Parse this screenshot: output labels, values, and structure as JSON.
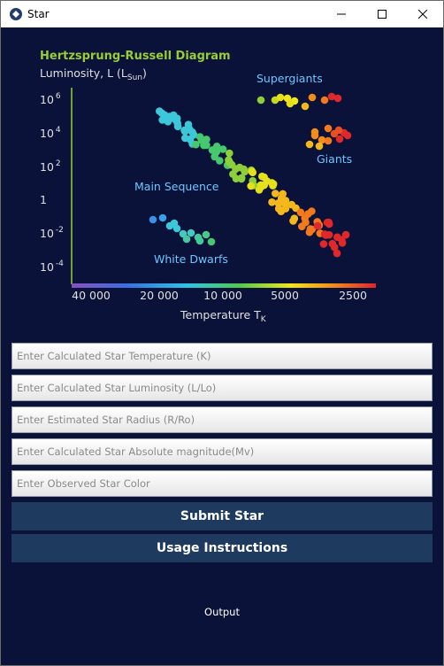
{
  "window": {
    "title": "Star"
  },
  "chart_data": {
    "type": "scatter",
    "title": "Hertzsprung-Russell Diagram",
    "ylabel": "Luminosity, L (L",
    "ylabel_sub": "Sun",
    "ylabel_end": ")",
    "xlabel": "Temperature T",
    "xlabel_sub": "K",
    "y_ticks": [
      "10^6",
      "10^4",
      "10^2",
      "1",
      "10^-2",
      "10^-4"
    ],
    "x_ticks": [
      "40 000",
      "20 000",
      "10 000",
      "5000",
      "2500"
    ],
    "xlim": [
      40000,
      2500
    ],
    "x_scale": "log",
    "y_scale": "log",
    "regions": [
      "Supergiants",
      "Giants",
      "Main Sequence",
      "White Dwarfs"
    ],
    "title_color": "#9acd32",
    "label_color": "#6ec6ff"
  },
  "form": {
    "temperature_placeholder": "Enter Calculated Star Temperature (K)",
    "luminosity_placeholder": "Enter Calculated Star Luminosity (L/Lo)",
    "radius_placeholder": "Enter Estimated Star Radius (R/Ro)",
    "magnitude_placeholder": "Enter Calculated Star Absolute magnitude(Mv)",
    "color_placeholder": "Enter Observed Star Color"
  },
  "buttons": {
    "submit": "Submit Star",
    "instructions": "Usage Instructions"
  },
  "output": {
    "label": "Output"
  }
}
